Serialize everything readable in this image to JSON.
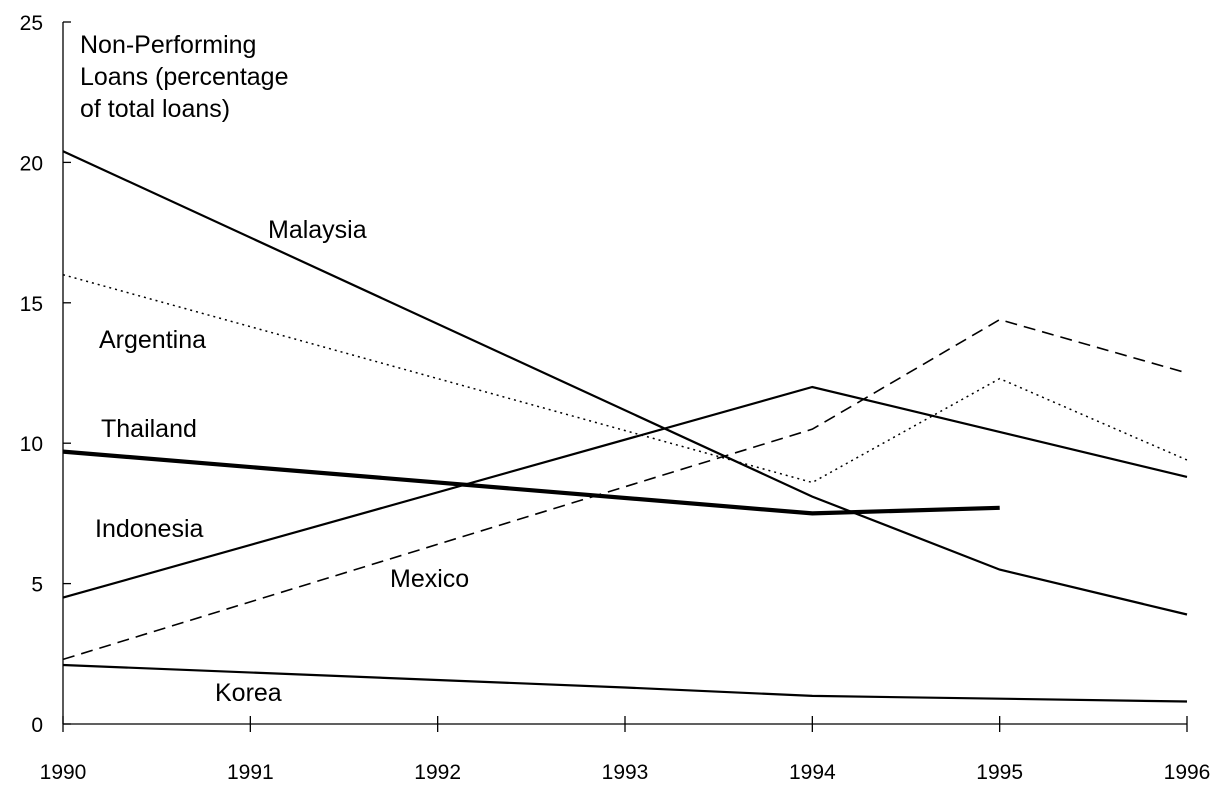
{
  "chart_data": {
    "type": "line",
    "ylabel_lines": [
      "Non-Performing",
      "Loans (percentage",
      "of total loans)"
    ],
    "x": [
      1990,
      1991,
      1992,
      1993,
      1994,
      1995,
      1996
    ],
    "xlim": [
      1990,
      1996
    ],
    "ylim": [
      0,
      25
    ],
    "yticks": [
      0,
      5,
      10,
      15,
      20,
      25
    ],
    "grid": false,
    "legend": "inline labels",
    "series": [
      {
        "name": "Malaysia",
        "style": "solid",
        "color": "#000000",
        "points": [
          [
            1990,
            20.4
          ],
          [
            1994,
            8.1
          ],
          [
            1995,
            5.5
          ],
          [
            1996,
            3.9
          ]
        ]
      },
      {
        "name": "Argentina",
        "style": "dotted",
        "color": "#000000",
        "points": [
          [
            1990,
            16.0
          ],
          [
            1994,
            8.6
          ],
          [
            1995,
            12.3
          ],
          [
            1996,
            9.4
          ]
        ]
      },
      {
        "name": "Thailand",
        "style": "thick",
        "color": "#000000",
        "points": [
          [
            1990,
            9.7
          ],
          [
            1994,
            7.5
          ],
          [
            1995,
            7.7
          ]
        ]
      },
      {
        "name": "Indonesia",
        "style": "solid",
        "color": "#000000",
        "points": [
          [
            1990,
            4.5
          ],
          [
            1994,
            12.0
          ],
          [
            1996,
            8.8
          ]
        ]
      },
      {
        "name": "Mexico",
        "style": "dashed",
        "color": "#000000",
        "points": [
          [
            1990,
            2.3
          ],
          [
            1994,
            10.5
          ],
          [
            1995,
            14.4
          ],
          [
            1996,
            12.5
          ]
        ]
      },
      {
        "name": "Korea",
        "style": "solid",
        "color": "#000000",
        "points": [
          [
            1990,
            2.1
          ],
          [
            1993,
            1.3
          ],
          [
            1994,
            1.0
          ],
          [
            1996,
            0.8
          ]
        ]
      }
    ]
  }
}
